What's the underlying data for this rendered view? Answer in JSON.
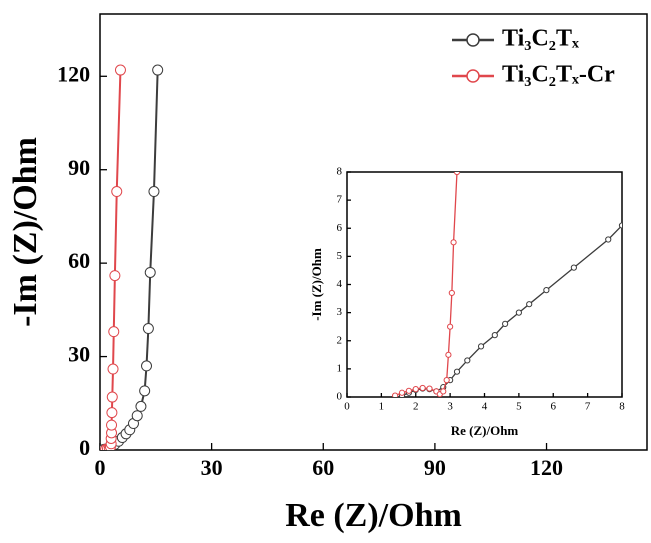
{
  "chart_data": [
    {
      "type": "line",
      "xlabel": "Re (Z)/Ohm",
      "ylabel": "-Im (Z)/Ohm",
      "xlim": [
        0,
        147
      ],
      "ylim": [
        0,
        140
      ],
      "xticks": [
        0,
        30,
        60,
        90,
        120
      ],
      "yticks": [
        0,
        30,
        60,
        90,
        120
      ],
      "series": [
        {
          "name": "Ti₃C₂Tₓ",
          "color": "#3c3c3c",
          "x": [
            0.5,
            1,
            1.5,
            2,
            2.5,
            3,
            4,
            5,
            6,
            7,
            8,
            9,
            10,
            11,
            12,
            12.5,
            13,
            13.5,
            14.5,
            15.5
          ],
          "values": [
            0,
            0.2,
            0.3,
            0.4,
            0.5,
            1,
            1.8,
            2.8,
            4,
            5.2,
            6.5,
            8.5,
            11,
            14,
            19,
            27,
            39,
            57,
            83,
            122
          ]
        },
        {
          "name": "Ti₃C₂Tₓ-Cr",
          "color": "#e0474c",
          "x": [
            1.5,
            2,
            2.5,
            2.8,
            3,
            3,
            3.1,
            3.1,
            3.2,
            3.3,
            3.5,
            3.7,
            4,
            4.5,
            5.5
          ],
          "values": [
            0.2,
            0.3,
            0.5,
            1,
            2,
            3.7,
            5.5,
            8,
            12,
            17,
            26,
            38,
            56,
            83,
            122
          ]
        }
      ]
    },
    {
      "type": "line",
      "xlabel": "Re (Z)/Ohm",
      "ylabel": "-Im (Z)/Ohm",
      "xlim": [
        0,
        8
      ],
      "ylim": [
        0,
        8
      ],
      "xticks": [
        0,
        1,
        2,
        3,
        4,
        5,
        6,
        7,
        8
      ],
      "yticks": [
        0,
        1,
        2,
        3,
        4,
        5,
        6,
        7,
        8
      ],
      "series": [
        {
          "color": "#3c3c3c",
          "x": [
            1.6,
            1.8,
            2,
            2.2,
            2.4,
            2.6,
            2.8,
            3,
            3.2,
            3.5,
            3.9,
            4.3,
            4.6,
            5,
            5.3,
            5.8,
            6.6,
            7.6,
            8
          ],
          "values": [
            0.05,
            0.15,
            0.25,
            0.3,
            0.28,
            0.2,
            0.35,
            0.6,
            0.9,
            1.3,
            1.8,
            2.2,
            2.6,
            3,
            3.3,
            3.8,
            4.6,
            5.6,
            6.1
          ]
        },
        {
          "color": "#e0474c",
          "x": [
            1.4,
            1.6,
            1.8,
            2,
            2.2,
            2.4,
            2.6,
            2.7,
            2.8,
            2.9,
            2.95,
            3,
            3.05,
            3.1,
            3.2
          ],
          "values": [
            0.05,
            0.15,
            0.22,
            0.28,
            0.32,
            0.3,
            0.2,
            0.1,
            0.2,
            0.6,
            1.5,
            2.5,
            3.7,
            5.5,
            8
          ]
        }
      ]
    }
  ]
}
